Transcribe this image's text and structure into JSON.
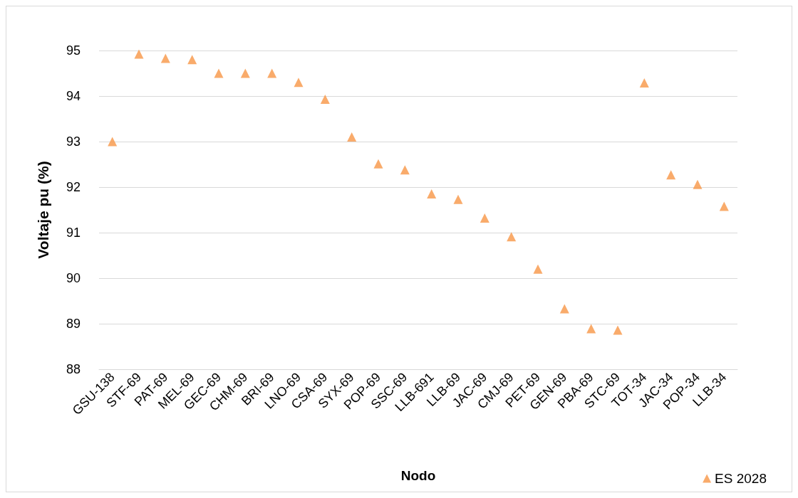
{
  "chart_data": {
    "type": "scatter",
    "xlabel": "Nodo",
    "ylabel": "Voltaje pu (%)",
    "categories": [
      "GSU-138",
      "STF-69",
      "PAT-69",
      "MEL-69",
      "GEC-69",
      "CHM-69",
      "BRI-69",
      "LNO-69",
      "CSA-69",
      "SYX-69",
      "POP-69",
      "SSC-69",
      "LLB-691",
      "LLB-69",
      "JAC-69",
      "CMJ-69",
      "PET-69",
      "GEN-69",
      "PBA-69",
      "STC-69",
      "TOT-34",
      "JAC-34",
      "POP-34",
      "LLB-34"
    ],
    "series": [
      {
        "name": "ES 2028",
        "color": "#f79646",
        "values": [
          93.0,
          94.92,
          94.83,
          94.8,
          94.5,
          94.5,
          94.5,
          94.3,
          93.93,
          93.1,
          92.51,
          92.38,
          91.85,
          91.73,
          91.32,
          90.91,
          90.2,
          89.33,
          88.89,
          88.86,
          94.29,
          92.27,
          92.06,
          91.58
        ]
      }
    ],
    "ylim": [
      88,
      95
    ],
    "yticks": [
      88,
      89,
      90,
      91,
      92,
      93,
      94,
      95
    ],
    "grid": "y",
    "legend": "bottom right",
    "marker": "triangle"
  }
}
